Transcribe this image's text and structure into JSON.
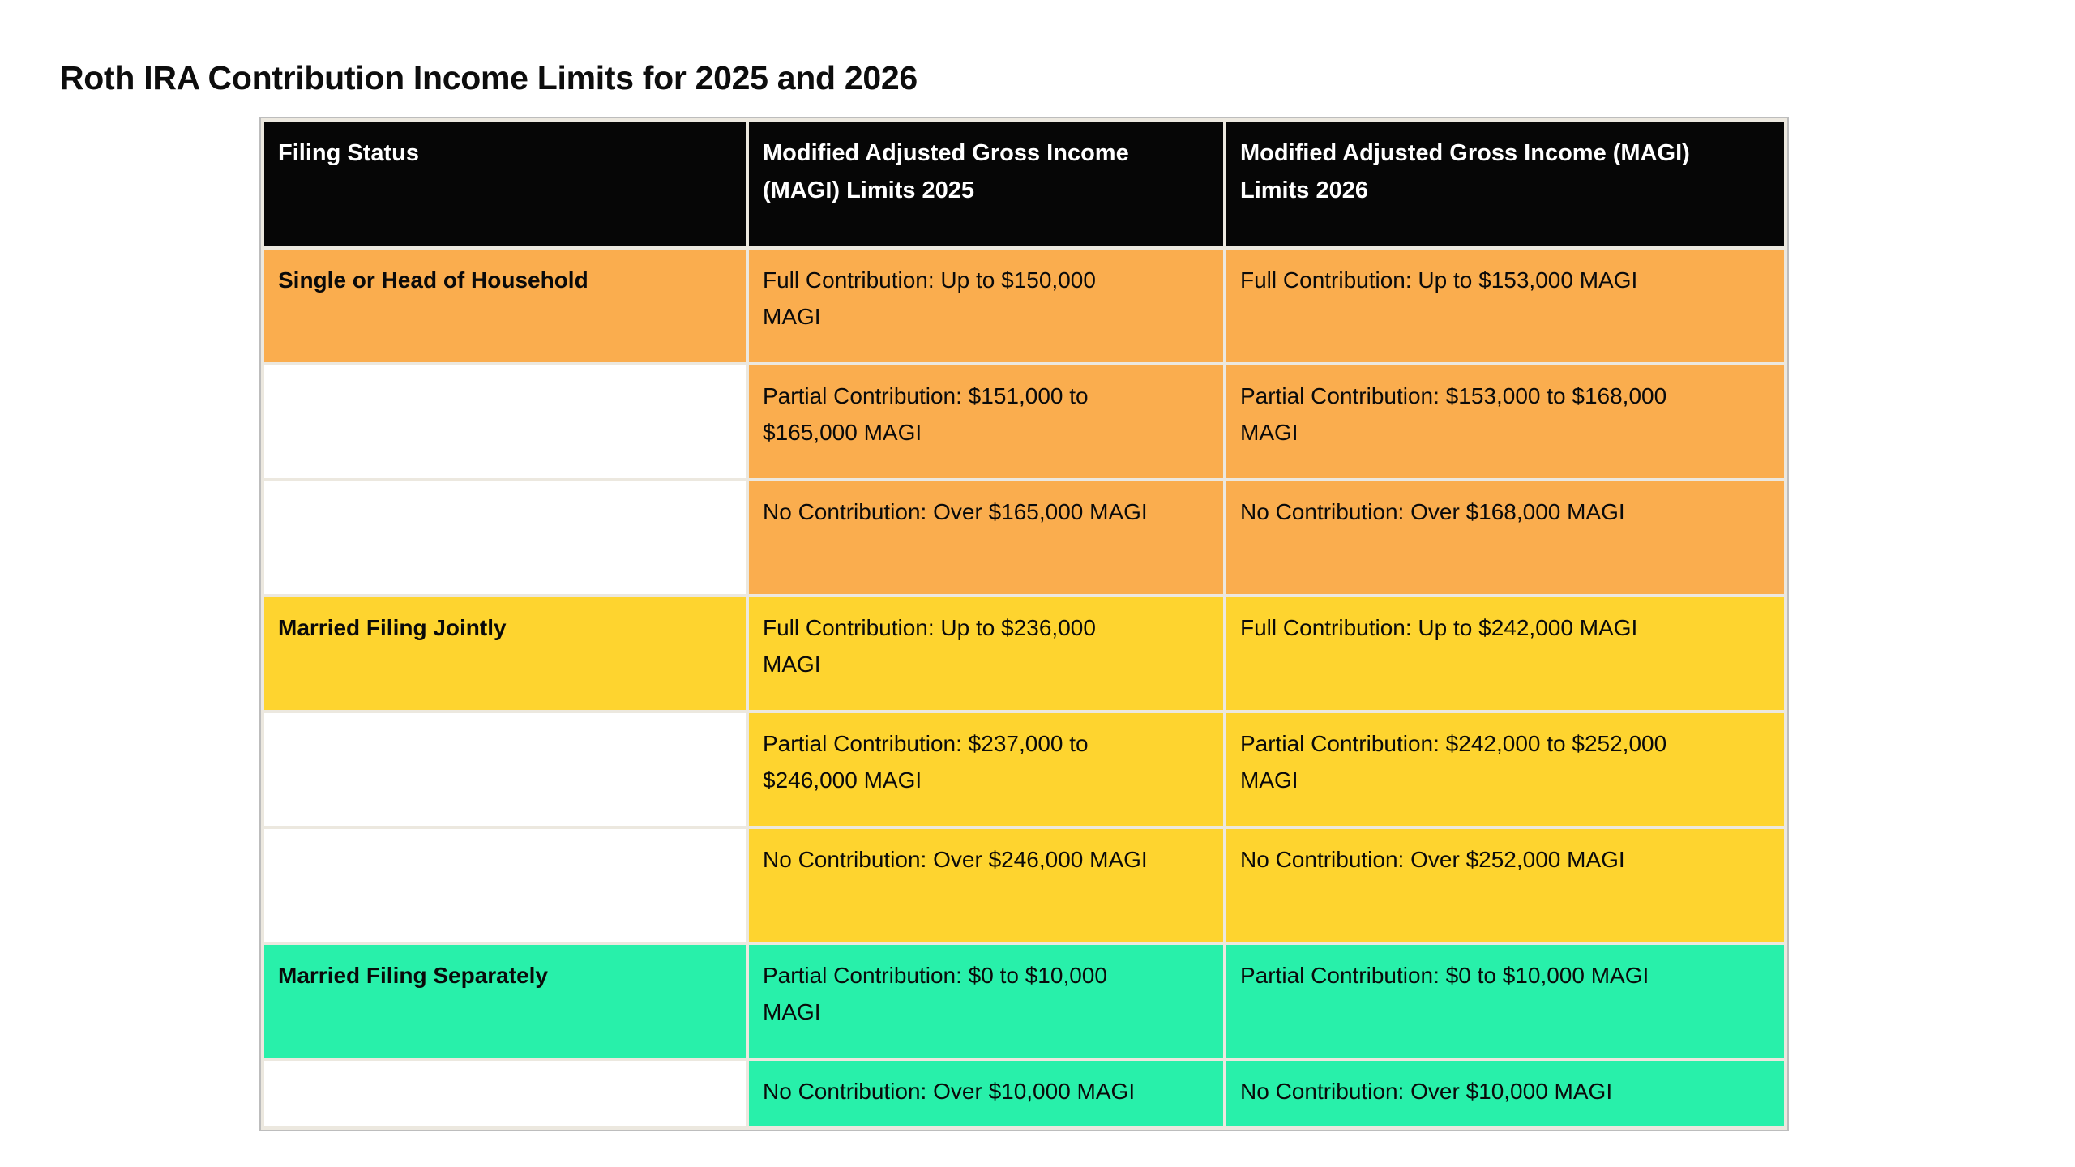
{
  "page": {
    "title": "Roth IRA Contribution Income Limits for 2025 and 2026"
  },
  "colors": {
    "header_bg": "#060606",
    "header_text": "#ffffff",
    "orange": "#faad4e",
    "yellow": "#fed42f",
    "green": "#28f0aa",
    "grid_line": "#ece8df",
    "outer_border": "#bdbdbd",
    "cell_text": "#0a0a0a"
  },
  "table": {
    "columns": [
      "Filing Status",
      "Modified Adjusted Gross Income\n(MAGI) Limits 2025",
      "Modified Adjusted Gross Income (MAGI)\nLimits 2026"
    ],
    "rows": [
      {
        "section": "single-or-head-of-household",
        "filing_status": "Single or Head of Household",
        "magi_2025": "Full Contribution: Up to $150,000\nMAGI",
        "magi_2026": "Full Contribution: Up to $153,000 MAGI"
      },
      {
        "section": "single-or-head-of-household",
        "filing_status": "",
        "magi_2025": "Partial Contribution: $151,000 to\n$165,000 MAGI",
        "magi_2026": "Partial Contribution: $153,000 to $168,000\nMAGI"
      },
      {
        "section": "single-or-head-of-household",
        "filing_status": "",
        "magi_2025": "No Contribution: Over $165,000 MAGI",
        "magi_2026": "No Contribution: Over $168,000 MAGI"
      },
      {
        "section": "married-filing-jointly",
        "filing_status": "Married Filing Jointly",
        "magi_2025": "Full Contribution: Up to $236,000\nMAGI",
        "magi_2026": "Full Contribution: Up to $242,000 MAGI"
      },
      {
        "section": "married-filing-jointly",
        "filing_status": "",
        "magi_2025": "Partial Contribution: $237,000 to\n$246,000 MAGI",
        "magi_2026": "Partial Contribution: $242,000 to $252,000\nMAGI"
      },
      {
        "section": "married-filing-jointly",
        "filing_status": "",
        "magi_2025": "No Contribution: Over $246,000 MAGI",
        "magi_2026": "No Contribution: Over $252,000 MAGI"
      },
      {
        "section": "married-filing-separately",
        "filing_status": "Married Filing Separately",
        "magi_2025": "Partial Contribution: $0 to $10,000\nMAGI",
        "magi_2026": "Partial Contribution: $0 to $10,000 MAGI"
      },
      {
        "section": "married-filing-separately",
        "filing_status": "",
        "magi_2025": "No Contribution: Over $10,000 MAGI",
        "magi_2026": "No Contribution: Over $10,000 MAGI"
      }
    ]
  }
}
